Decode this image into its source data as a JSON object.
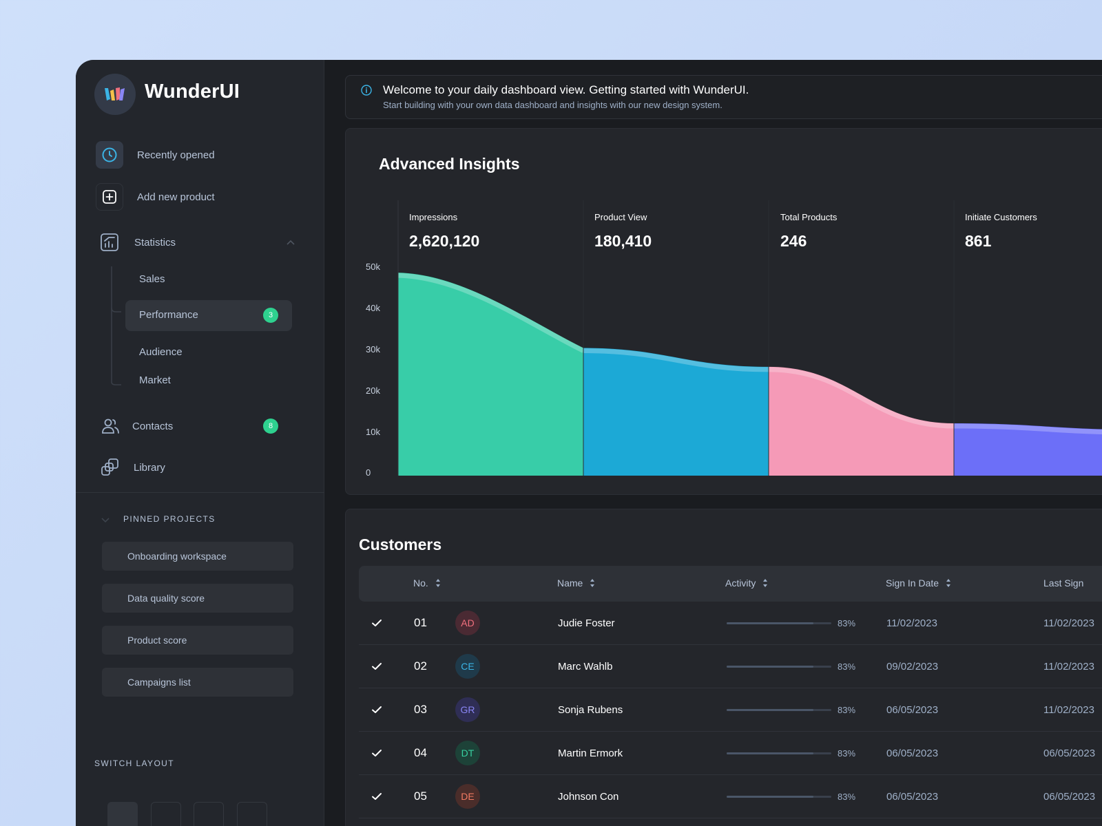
{
  "brand": {
    "name": "WunderUI"
  },
  "sidebar": {
    "recently_opened": "Recently opened",
    "add_new_product": "Add new product",
    "statistics": "Statistics",
    "sub_items": [
      "Sales",
      "Performance",
      "Audience",
      "Market"
    ],
    "performance_badge": "3",
    "contacts": "Contacts",
    "contacts_badge": "8",
    "library": "Library",
    "pinned_header": "PINNED PROJECTS",
    "pinned": [
      "Onboarding workspace",
      "Data quality score",
      "Product score",
      "Campaigns list"
    ],
    "switch_layout": "SWITCH LAYOUT"
  },
  "banner": {
    "title": "Welcome to your daily dashboard view. Getting started with WunderUI.",
    "subtitle": "Start building with your own data dashboard and insights with our new design system."
  },
  "insights": {
    "title": "Advanced Insights",
    "metrics": [
      {
        "label": "Impressions",
        "value": "2,620,120"
      },
      {
        "label": "Product View",
        "value": "180,410"
      },
      {
        "label": "Total Products",
        "value": "246"
      },
      {
        "label": "Initiate Customers",
        "value": "861"
      }
    ]
  },
  "chart_data": {
    "type": "area",
    "y_ticks": [
      "50k",
      "40k",
      "30k",
      "20k",
      "10k",
      "0"
    ],
    "ylim": [
      0,
      50000
    ],
    "categories": [
      "Impressions",
      "Product View",
      "Total Products",
      "Initiate Customers"
    ],
    "series": [
      {
        "name": "Impressions",
        "start": 48500,
        "end": 30500
      },
      {
        "name": "Product View",
        "start": 30500,
        "end": 26000
      },
      {
        "name": "Total Products",
        "start": 26000,
        "end": 12500
      },
      {
        "name": "Initiate Customers",
        "start": 12500,
        "end": 11000
      }
    ],
    "colors": [
      "#38cda8",
      "#1ca9d6",
      "#f59ab7",
      "#6c6ff8"
    ],
    "grid": false
  },
  "customers": {
    "title": "Customers",
    "columns": [
      "No.",
      "Name",
      "Activity",
      "Sign In Date",
      "Last Sign"
    ],
    "rows": [
      {
        "no": "01",
        "initials": "AD",
        "name": "Judie Foster",
        "activity": 83,
        "activity_label": "83%",
        "sign_in": "11/02/2023",
        "last": "11/02/2023"
      },
      {
        "no": "02",
        "initials": "CE",
        "name": "Marc Wahlb",
        "activity": 83,
        "activity_label": "83%",
        "sign_in": "09/02/2023",
        "last": "11/02/2023"
      },
      {
        "no": "03",
        "initials": "GR",
        "name": "Sonja Rubens",
        "activity": 83,
        "activity_label": "83%",
        "sign_in": "06/05/2023",
        "last": "11/02/2023"
      },
      {
        "no": "04",
        "initials": "DT",
        "name": "Martin Ermork",
        "activity": 83,
        "activity_label": "83%",
        "sign_in": "06/05/2023",
        "last": "06/05/2023"
      },
      {
        "no": "05",
        "initials": "DE",
        "name": "Johnson Con",
        "activity": 83,
        "activity_label": "83%",
        "sign_in": "06/05/2023",
        "last": "06/05/2023"
      }
    ],
    "avatar_colors": [
      {
        "bg": "#4a2a33",
        "fg": "#f0707e"
      },
      {
        "bg": "#1f3a4a",
        "fg": "#3bb4e6"
      },
      {
        "bg": "#2f2e55",
        "fg": "#8a86f5"
      },
      {
        "bg": "#1d4238",
        "fg": "#38d0a0"
      },
      {
        "bg": "#4a2d2a",
        "fg": "#f27a62"
      }
    ]
  }
}
